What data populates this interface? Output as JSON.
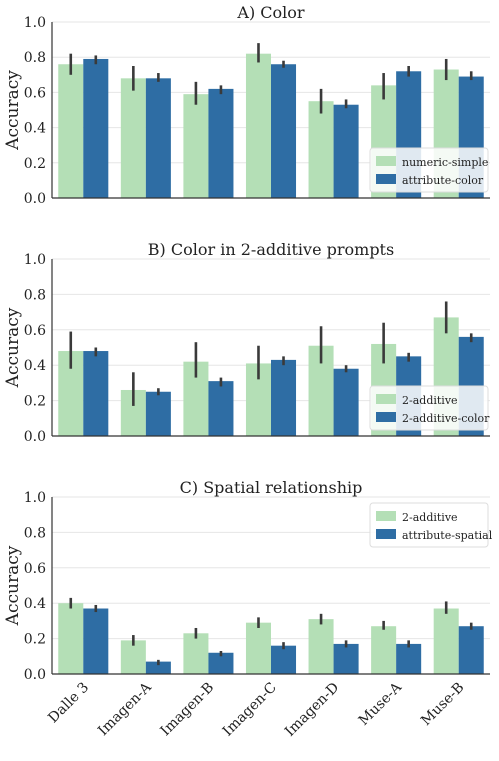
{
  "chart_data": [
    {
      "type": "bar",
      "title": "A) Color",
      "ylabel": "Accuracy",
      "xlabel": "",
      "ylim": [
        0,
        1.0
      ],
      "yticks": [
        "0.0",
        "0.2",
        "0.4",
        "0.6",
        "0.8",
        "1.0"
      ],
      "grid": "horizontal",
      "legend_position": "bottom-right",
      "categories": [
        "Dalle 3",
        "Imagen-A",
        "Imagen-B",
        "Imagen-C",
        "Imagen-D",
        "Muse-A",
        "Muse-B"
      ],
      "series": [
        {
          "name": "numeric-simple",
          "color": "#b4dfb6",
          "values": [
            0.76,
            0.68,
            0.59,
            0.82,
            0.55,
            0.64,
            0.73
          ],
          "err_low": [
            0.7,
            0.61,
            0.53,
            0.77,
            0.48,
            0.56,
            0.67
          ],
          "err_high": [
            0.82,
            0.75,
            0.66,
            0.88,
            0.62,
            0.71,
            0.79
          ]
        },
        {
          "name": "attribute-color",
          "color": "#2e6da4",
          "values": [
            0.79,
            0.68,
            0.62,
            0.76,
            0.53,
            0.72,
            0.69
          ],
          "err_low": [
            0.76,
            0.66,
            0.59,
            0.74,
            0.51,
            0.69,
            0.67
          ],
          "err_high": [
            0.81,
            0.71,
            0.64,
            0.78,
            0.56,
            0.75,
            0.72
          ]
        }
      ]
    },
    {
      "type": "bar",
      "title": "B) Color in 2-additive prompts",
      "ylabel": "Accuracy",
      "xlabel": "",
      "ylim": [
        0,
        1.0
      ],
      "yticks": [
        "0.0",
        "0.2",
        "0.4",
        "0.6",
        "0.8",
        "1.0"
      ],
      "grid": "horizontal",
      "legend_position": "bottom-right",
      "categories": [
        "Dalle 3",
        "Imagen-A",
        "Imagen-B",
        "Imagen-C",
        "Imagen-D",
        "Muse-A",
        "Muse-B"
      ],
      "series": [
        {
          "name": "2-additive",
          "color": "#b4dfb6",
          "values": [
            0.48,
            0.26,
            0.42,
            0.41,
            0.51,
            0.52,
            0.67
          ],
          "err_low": [
            0.38,
            0.17,
            0.33,
            0.32,
            0.41,
            0.41,
            0.58
          ],
          "err_high": [
            0.59,
            0.36,
            0.53,
            0.51,
            0.62,
            0.64,
            0.76
          ]
        },
        {
          "name": "2-additive-color",
          "color": "#2e6da4",
          "values": [
            0.48,
            0.25,
            0.31,
            0.43,
            0.38,
            0.45,
            0.56
          ],
          "err_low": [
            0.45,
            0.23,
            0.28,
            0.4,
            0.36,
            0.42,
            0.53
          ],
          "err_high": [
            0.5,
            0.27,
            0.33,
            0.45,
            0.4,
            0.47,
            0.58
          ]
        }
      ]
    },
    {
      "type": "bar",
      "title": "C) Spatial relationship",
      "ylabel": "Accuracy",
      "xlabel": "",
      "ylim": [
        0,
        1.0
      ],
      "yticks": [
        "0.0",
        "0.2",
        "0.4",
        "0.6",
        "0.8",
        "1.0"
      ],
      "grid": "horizontal",
      "legend_position": "top-right",
      "categories": [
        "Dalle 3",
        "Imagen-A",
        "Imagen-B",
        "Imagen-C",
        "Imagen-D",
        "Muse-A",
        "Muse-B"
      ],
      "series": [
        {
          "name": "2-additive",
          "color": "#b4dfb6",
          "values": [
            0.4,
            0.19,
            0.23,
            0.29,
            0.31,
            0.27,
            0.37
          ],
          "err_low": [
            0.37,
            0.16,
            0.2,
            0.26,
            0.28,
            0.25,
            0.34
          ],
          "err_high": [
            0.43,
            0.22,
            0.26,
            0.32,
            0.34,
            0.3,
            0.41
          ]
        },
        {
          "name": "attribute-spatial",
          "color": "#2e6da4",
          "values": [
            0.37,
            0.07,
            0.12,
            0.16,
            0.17,
            0.17,
            0.27
          ],
          "err_low": [
            0.35,
            0.05,
            0.1,
            0.14,
            0.15,
            0.15,
            0.25
          ],
          "err_high": [
            0.39,
            0.08,
            0.13,
            0.18,
            0.19,
            0.19,
            0.29
          ]
        }
      ]
    }
  ]
}
